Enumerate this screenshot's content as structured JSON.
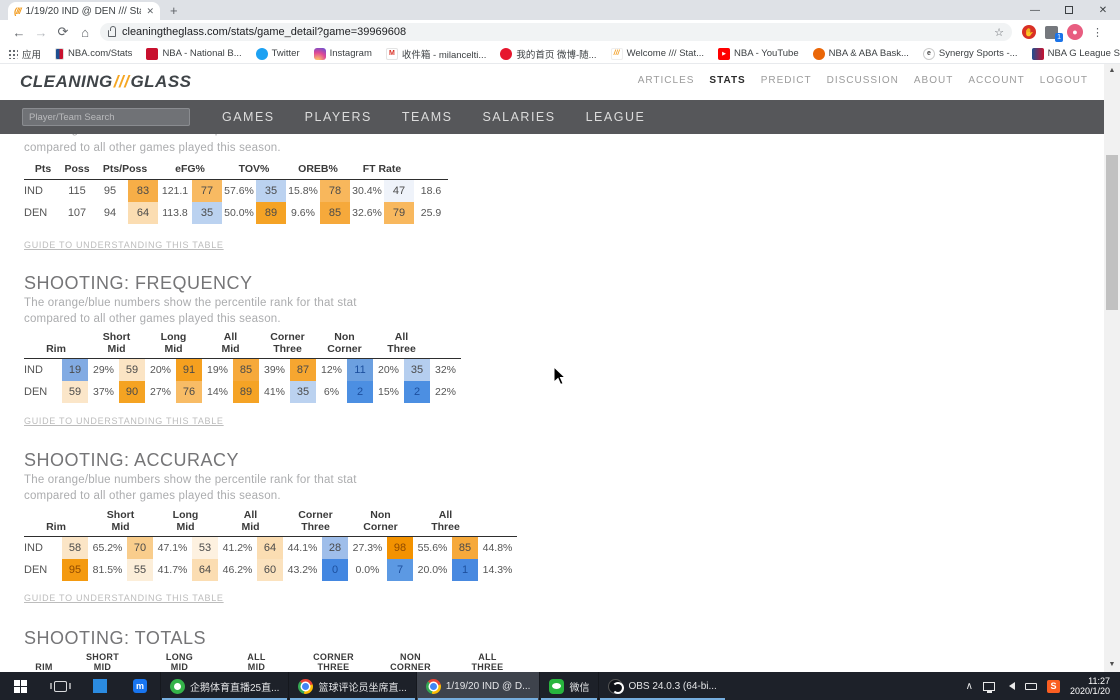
{
  "browser": {
    "tab_title": "1/19/20 IND @ DEN /// Stats",
    "tab_close": "✕",
    "new_tab": "+",
    "url": "cleaningtheglass.com/stats/game_detail?game=39969608",
    "extensions_badge": "1",
    "bookmarks_overflow": "»",
    "bookmarks": [
      {
        "label": "应用",
        "icon": "apps-grid"
      },
      {
        "label": "NBA.com/Stats",
        "icon": "nba"
      },
      {
        "label": "NBA - National B...",
        "icon": "nba-red"
      },
      {
        "label": "Twitter",
        "icon": "twitter"
      },
      {
        "label": "Instagram",
        "icon": "instagram"
      },
      {
        "label": "收件箱 - milancelti...",
        "icon": "gmail",
        "icon_letter": "M"
      },
      {
        "label": "我的首页 微博-随...",
        "icon": "weibo"
      },
      {
        "label": "Welcome /// Stat...",
        "icon": "ctg",
        "icon_letter": "///"
      },
      {
        "label": "NBA - YouTube",
        "icon": "youtube",
        "icon_letter": "▶"
      },
      {
        "label": "NBA & ABA Bask...",
        "icon": "bbref"
      },
      {
        "label": "Synergy Sports -...",
        "icon": "synergy",
        "icon_letter": "e"
      },
      {
        "label": "NBA G League St...",
        "icon": "gleague"
      }
    ]
  },
  "site": {
    "logo": {
      "part1": "CLEANING",
      "slashes": "///",
      "part2": "GLASS"
    },
    "top_nav": {
      "items": [
        "ARTICLES",
        "STATS",
        "PREDICT",
        "DISCUSSION",
        "ABOUT",
        "ACCOUNT",
        "LOGOUT"
      ],
      "active": "STATS"
    },
    "search_placeholder": "Player/Team Search",
    "main_nav": [
      "GAMES",
      "PLAYERS",
      "TEAMS",
      "SALARIES",
      "LEAGUE"
    ]
  },
  "content": {
    "guide_link": "GUIDE TO UNDERSTANDING THIS TABLE",
    "subtitle_line1": "The orange/blue numbers show the percentile rank for that stat",
    "subtitle_line2": "compared to all other games played this season.",
    "four_factors": {
      "columns": [
        "Pts",
        "Poss",
        "Pts/Poss",
        "eFG%",
        "TOV%",
        "OREB%",
        "FT Rate"
      ],
      "rows": [
        {
          "team": "IND",
          "pts": "115",
          "poss": "95",
          "stats": [
            {
              "pct": "83",
              "val": "121.1",
              "bg": "#F7AE47"
            },
            {
              "pct": "77",
              "val": "57.6%",
              "bg": "#F8BA62"
            },
            {
              "pct": "35",
              "val": "15.8%",
              "bg": "#BBD2F0"
            },
            {
              "pct": "78",
              "val": "30.4%",
              "bg": "#F8B75C"
            },
            {
              "pct": "47",
              "val": "18.6",
              "bg": "#EFF3FA"
            }
          ]
        },
        {
          "team": "DEN",
          "pts": "107",
          "poss": "94",
          "stats": [
            {
              "pct": "64",
              "val": "113.8",
              "bg": "#FBDDB2"
            },
            {
              "pct": "35",
              "val": "50.0%",
              "bg": "#BBD2F0"
            },
            {
              "pct": "89",
              "val": "9.6%",
              "bg": "#F5A325"
            },
            {
              "pct": "85",
              "val": "32.6%",
              "bg": "#F6A93B"
            },
            {
              "pct": "79",
              "val": "25.9",
              "bg": "#F8B85E"
            }
          ]
        }
      ]
    },
    "frequency": {
      "title": "SHOOTING: FREQUENCY",
      "columns": [
        [
          "Rim"
        ],
        [
          "Short",
          "Mid"
        ],
        [
          "Long",
          "Mid"
        ],
        [
          "All",
          "Mid"
        ],
        [
          "Corner",
          "Three"
        ],
        [
          "Non",
          "Corner"
        ],
        [
          "All",
          "Three"
        ]
      ],
      "rows": [
        {
          "team": "IND",
          "stats": [
            {
              "pct": "19",
              "val": "29%",
              "bg": "#82ABE3"
            },
            {
              "pct": "59",
              "val": "20%",
              "bg": "#FBE4C4"
            },
            {
              "pct": "91",
              "val": "19%",
              "bg": "#F5A01F"
            },
            {
              "pct": "85",
              "val": "39%",
              "bg": "#F6A93B"
            },
            {
              "pct": "87",
              "val": "12%",
              "bg": "#F6A630"
            },
            {
              "pct": "11",
              "val": "20%",
              "bg": "#6CA0E0"
            },
            {
              "pct": "35",
              "val": "32%",
              "bg": "#B5CEEF"
            }
          ]
        },
        {
          "team": "DEN",
          "stats": [
            {
              "pct": "59",
              "val": "37%",
              "bg": "#FBE6C9"
            },
            {
              "pct": "90",
              "val": "27%",
              "bg": "#F5A322"
            },
            {
              "pct": "76",
              "val": "14%",
              "bg": "#F8BC66"
            },
            {
              "pct": "89",
              "val": "41%",
              "bg": "#F5A325"
            },
            {
              "pct": "35",
              "val": "6%",
              "bg": "#BBD2F0"
            },
            {
              "pct": "2",
              "val": "15%",
              "bg": "#4C8FE2"
            },
            {
              "pct": "2",
              "val": "22%",
              "bg": "#4C8FE2"
            }
          ]
        }
      ]
    },
    "accuracy": {
      "title": "SHOOTING: ACCURACY",
      "columns": [
        [
          "Rim"
        ],
        [
          "Short",
          "Mid"
        ],
        [
          "Long",
          "Mid"
        ],
        [
          "All",
          "Mid"
        ],
        [
          "Corner",
          "Three"
        ],
        [
          "Non",
          "Corner"
        ],
        [
          "All",
          "Three"
        ]
      ],
      "rows": [
        {
          "team": "IND",
          "stats": [
            {
              "pct": "58",
              "val": "65.2%",
              "bg": "#FBE5C6"
            },
            {
              "pct": "70",
              "val": "47.1%",
              "bg": "#F9CD8C"
            },
            {
              "pct": "53",
              "val": "41.2%",
              "bg": "#FDF1E0"
            },
            {
              "pct": "64",
              "val": "44.1%",
              "bg": "#FBDDB2"
            },
            {
              "pct": "28",
              "val": "27.3%",
              "bg": "#9FBEEA"
            },
            {
              "pct": "98",
              "val": "55.6%",
              "bg": "#F39200"
            },
            {
              "pct": "85",
              "val": "44.8%",
              "bg": "#F6A93B"
            }
          ]
        },
        {
          "team": "DEN",
          "stats": [
            {
              "pct": "95",
              "val": "81.5%",
              "bg": "#F49A10"
            },
            {
              "pct": "55",
              "val": "41.7%",
              "bg": "#FCEED9"
            },
            {
              "pct": "64",
              "val": "46.2%",
              "bg": "#FBDDB2"
            },
            {
              "pct": "60",
              "val": "43.2%",
              "bg": "#FBE2BE"
            },
            {
              "pct": "0",
              "val": "0.0%",
              "bg": "#4387E1"
            },
            {
              "pct": "7",
              "val": "20.0%",
              "bg": "#5C99E3"
            },
            {
              "pct": "1",
              "val": "14.3%",
              "bg": "#4889E0"
            }
          ]
        }
      ]
    },
    "totals": {
      "title": "SHOOTING: TOTALS",
      "columns": [
        [
          "RIM"
        ],
        [
          "SHORT",
          "MID"
        ],
        [
          "LONG",
          "MID"
        ],
        [
          "ALL",
          "MID"
        ],
        [
          "CORNER",
          "THREE"
        ],
        [
          "NON",
          "CORNER"
        ],
        [
          "ALL",
          "THREE"
        ]
      ]
    }
  },
  "taskbar": {
    "apps": [
      {
        "label": "企鹅体育直播25直...",
        "icon": "qie"
      },
      {
        "label": "篮球评论员坐席直...",
        "icon": "chrome"
      },
      {
        "label": "1/19/20 IND @ D...",
        "icon": "chrome",
        "active": true
      },
      {
        "label": "微信",
        "icon": "wechat"
      },
      {
        "label": "OBS 24.0.3 (64-bi...",
        "icon": "obs"
      }
    ],
    "tray": {
      "sogou": "S",
      "time": "11:27",
      "date": "2020/1/20"
    }
  }
}
